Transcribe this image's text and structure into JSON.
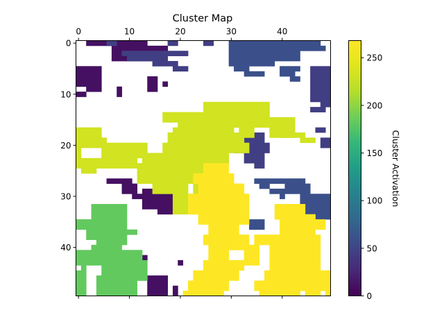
{
  "chart_data": {
    "type": "heatmap",
    "title": "Cluster Map",
    "grid_size": [
      50,
      50
    ],
    "x_ticks": [
      0,
      10,
      20,
      30,
      40
    ],
    "x_tick_position": "top",
    "y_ticks": [
      0,
      10,
      20,
      30,
      40
    ],
    "xlim": [
      -0.5,
      49.5
    ],
    "ylim": [
      49.5,
      -0.5
    ],
    "grid": false,
    "colormap": "viridis",
    "colorbar": {
      "label": "Cluster Activation",
      "ticks": [
        0,
        50,
        100,
        150,
        200,
        250
      ],
      "range": [
        0,
        268
      ]
    },
    "missing_value_color": "#ffffff",
    "clusters": [
      {
        "value": 10,
        "rects": [
          [
            2,
            14,
            0,
            1
          ],
          [
            7,
            18,
            1,
            4
          ],
          [
            0,
            5,
            5,
            9
          ],
          [
            2,
            5,
            9,
            10
          ],
          [
            0,
            2,
            10,
            11
          ],
          [
            8,
            9,
            9,
            11
          ],
          [
            14,
            16,
            7,
            10
          ],
          [
            17,
            18,
            8,
            9
          ],
          [
            15,
            16,
            26,
            28
          ],
          [
            16,
            19,
            26,
            28
          ],
          [
            6,
            11,
            27,
            28
          ],
          [
            9,
            12,
            28,
            30
          ],
          [
            11,
            13,
            30,
            31
          ],
          [
            13,
            19,
            29,
            31
          ],
          [
            13,
            20,
            31,
            33
          ],
          [
            16,
            19,
            33,
            34
          ],
          [
            14,
            18,
            46,
            50
          ],
          [
            19,
            20,
            48,
            50
          ],
          [
            6,
            7,
            48,
            49
          ],
          [
            13,
            14,
            42,
            43
          ],
          [
            20,
            21,
            43,
            44
          ]
        ]
      },
      {
        "value": 45,
        "rects": [
          [
            6,
            8,
            0,
            1
          ],
          [
            18,
            20,
            0,
            1
          ],
          [
            25,
            27,
            0,
            1
          ],
          [
            9,
            22,
            2,
            3
          ],
          [
            10,
            18,
            3,
            4
          ],
          [
            17,
            20,
            4,
            5
          ],
          [
            19,
            22,
            5,
            6
          ],
          [
            15,
            17,
            4,
            5
          ],
          [
            33,
            37,
            18,
            20
          ],
          [
            31,
            38,
            20,
            22
          ],
          [
            33,
            37,
            22,
            24
          ],
          [
            35,
            37,
            24,
            25
          ],
          [
            48,
            50,
            19,
            21
          ],
          [
            47,
            49,
            17,
            18
          ],
          [
            48,
            50,
            12,
            13
          ],
          [
            46,
            49,
            13,
            14
          ],
          [
            46,
            50,
            5,
            12
          ],
          [
            47,
            49,
            9,
            11
          ]
        ]
      },
      {
        "value": 60,
        "rects": [
          [
            30,
            48,
            0,
            1
          ],
          [
            30,
            49,
            1,
            2
          ],
          [
            30,
            44,
            2,
            4
          ],
          [
            30,
            39,
            4,
            5
          ],
          [
            31,
            34,
            5,
            6
          ],
          [
            33,
            37,
            6,
            7
          ],
          [
            40,
            44,
            5,
            6
          ],
          [
            40,
            43,
            6,
            7
          ],
          [
            42,
            44,
            7,
            8
          ],
          [
            36,
            38,
            28,
            29
          ],
          [
            35,
            40,
            27,
            28
          ],
          [
            40,
            45,
            27,
            28
          ],
          [
            41,
            46,
            28,
            30
          ],
          [
            44,
            50,
            30,
            32
          ],
          [
            43,
            50,
            32,
            34
          ],
          [
            46,
            50,
            34,
            35
          ],
          [
            38,
            41,
            29,
            30
          ],
          [
            40,
            41,
            30,
            31
          ],
          [
            34,
            37,
            35,
            37
          ]
        ]
      },
      {
        "value": 182,
        "rects": [
          [
            3,
            10,
            32,
            35
          ],
          [
            0,
            10,
            35,
            37
          ],
          [
            2,
            8,
            37,
            39
          ],
          [
            4,
            7,
            39,
            40
          ],
          [
            7,
            10,
            38,
            40
          ],
          [
            8,
            12,
            37,
            38
          ],
          [
            7,
            13,
            41,
            43
          ],
          [
            5,
            13,
            43,
            46
          ],
          [
            4,
            12,
            46,
            50
          ],
          [
            3,
            9,
            40,
            44
          ],
          [
            0,
            3,
            41,
            44
          ],
          [
            1,
            2,
            44,
            50
          ],
          [
            0,
            1,
            45,
            50
          ],
          [
            12,
            14,
            43,
            47
          ]
        ]
      },
      {
        "value": 232,
        "rects": [
          [
            20,
            25,
            16,
            17
          ],
          [
            19,
            31,
            17,
            18
          ],
          [
            18,
            33,
            18,
            20
          ],
          [
            17,
            34,
            20,
            22
          ],
          [
            13,
            30,
            22,
            24
          ],
          [
            12,
            28,
            24,
            28
          ],
          [
            15,
            22,
            28,
            30
          ],
          [
            19,
            23,
            26,
            27
          ],
          [
            23,
            26,
            28,
            30
          ],
          [
            0,
            1,
            17,
            25
          ],
          [
            1,
            5,
            17,
            20
          ],
          [
            5,
            14,
            21,
            23
          ],
          [
            1,
            14,
            20,
            21
          ],
          [
            1,
            4,
            25,
            26
          ],
          [
            1,
            12,
            23,
            25
          ],
          [
            2,
            6,
            19,
            20
          ],
          [
            25,
            30,
            12,
            16
          ],
          [
            30,
            38,
            12,
            16
          ],
          [
            17,
            26,
            14,
            16
          ],
          [
            25,
            35,
            16,
            17
          ],
          [
            32,
            35,
            17,
            19
          ],
          [
            35,
            43,
            15,
            17
          ],
          [
            38,
            43,
            17,
            19
          ],
          [
            40,
            45,
            18,
            19
          ],
          [
            44,
            47,
            19,
            20
          ],
          [
            19,
            26,
            30,
            34
          ],
          [
            24,
            28,
            29,
            30
          ]
        ]
      },
      {
        "value": 268,
        "rects": [
          [
            25,
            30,
            24,
            26
          ],
          [
            23,
            31,
            26,
            28
          ],
          [
            24,
            33,
            28,
            30
          ],
          [
            22,
            34,
            30,
            34
          ],
          [
            24,
            34,
            34,
            36
          ],
          [
            26,
            32,
            36,
            38
          ],
          [
            25,
            33,
            38,
            40
          ],
          [
            26,
            30,
            40,
            43
          ],
          [
            25,
            33,
            43,
            45
          ],
          [
            23,
            32,
            45,
            47
          ],
          [
            22,
            30,
            47,
            49
          ],
          [
            21,
            25,
            49,
            50
          ],
          [
            25,
            29,
            49,
            50
          ],
          [
            40,
            47,
            34,
            38
          ],
          [
            35,
            48,
            38,
            40
          ],
          [
            38,
            48,
            40,
            45
          ],
          [
            37,
            50,
            45,
            47
          ],
          [
            35,
            50,
            47,
            49
          ],
          [
            36,
            44,
            49,
            50
          ],
          [
            45,
            48,
            49,
            50
          ],
          [
            39,
            45,
            32,
            35
          ],
          [
            43,
            49,
            35,
            37
          ],
          [
            49,
            50,
            45,
            50
          ],
          [
            30,
            34,
            38,
            41
          ],
          [
            33,
            36,
            40,
            44
          ]
        ]
      }
    ]
  }
}
